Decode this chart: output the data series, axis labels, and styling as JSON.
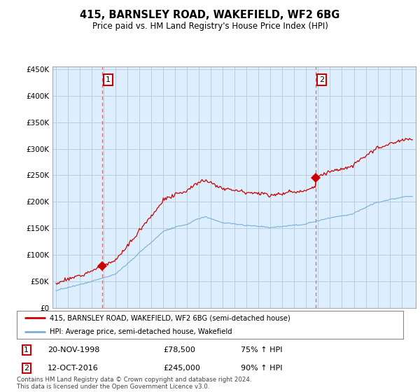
{
  "title": "415, BARNSLEY ROAD, WAKEFIELD, WF2 6BG",
  "subtitle": "Price paid vs. HM Land Registry's House Price Index (HPI)",
  "legend_label_red": "415, BARNSLEY ROAD, WAKEFIELD, WF2 6BG (semi-detached house)",
  "legend_label_blue": "HPI: Average price, semi-detached house, Wakefield",
  "annotation1_text": "20-NOV-1998",
  "annotation1_price_text": "£78,500",
  "annotation1_pct_text": "75% ↑ HPI",
  "annotation2_text": "12-OCT-2016",
  "annotation2_price_text": "£245,000",
  "annotation2_pct_text": "90% ↑ HPI",
  "footer": "Contains HM Land Registry data © Crown copyright and database right 2024.\nThis data is licensed under the Open Government Licence v3.0.",
  "price1": 78500,
  "price2": 245000,
  "t1": 1998.88,
  "t2": 2016.79,
  "ylim": [
    0,
    450000
  ],
  "yticks": [
    0,
    50000,
    100000,
    150000,
    200000,
    250000,
    300000,
    350000,
    400000,
    450000
  ],
  "red_color": "#cc0000",
  "blue_color": "#7aafd4",
  "vline_color": "#dd6666",
  "chart_bg": "#ddeeff",
  "background_color": "#ffffff",
  "grid_color": "#bbccdd"
}
